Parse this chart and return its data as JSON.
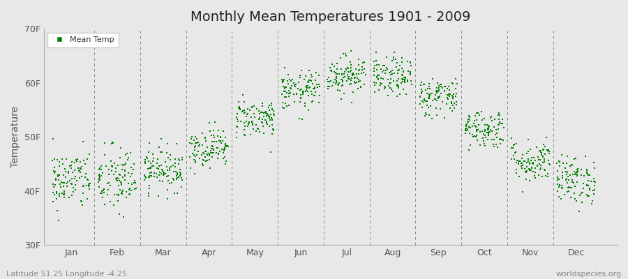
{
  "title": "Monthly Mean Temperatures 1901 - 2009",
  "ylabel": "Temperature",
  "ylim": [
    30,
    70
  ],
  "yticks": [
    30,
    40,
    50,
    60,
    70
  ],
  "ytick_labels": [
    "30F",
    "40F",
    "50F",
    "60F",
    "70F"
  ],
  "months": [
    "Jan",
    "Feb",
    "Mar",
    "Apr",
    "May",
    "Jun",
    "Jul",
    "Aug",
    "Sep",
    "Oct",
    "Nov",
    "Dec"
  ],
  "month_means_F": [
    42.0,
    42.0,
    44.0,
    48.0,
    53.5,
    58.5,
    61.5,
    61.0,
    57.5,
    51.5,
    45.5,
    42.0
  ],
  "month_stds_F": [
    2.8,
    3.2,
    2.0,
    1.8,
    1.8,
    1.8,
    1.8,
    1.8,
    1.8,
    1.8,
    2.0,
    2.2
  ],
  "n_years": 109,
  "dot_color": "#008000",
  "background_color": "#e8e8e8",
  "plot_bg_color": "#e8e8e8",
  "legend_label": "Mean Temp",
  "bottom_left_text": "Latitude 51.25 Longitude -4.25",
  "bottom_right_text": "worldspecies.org",
  "title_fontsize": 14,
  "axis_label_fontsize": 10,
  "tick_label_fontsize": 9,
  "annotation_fontsize": 8,
  "dot_size": 3,
  "seed": 42
}
